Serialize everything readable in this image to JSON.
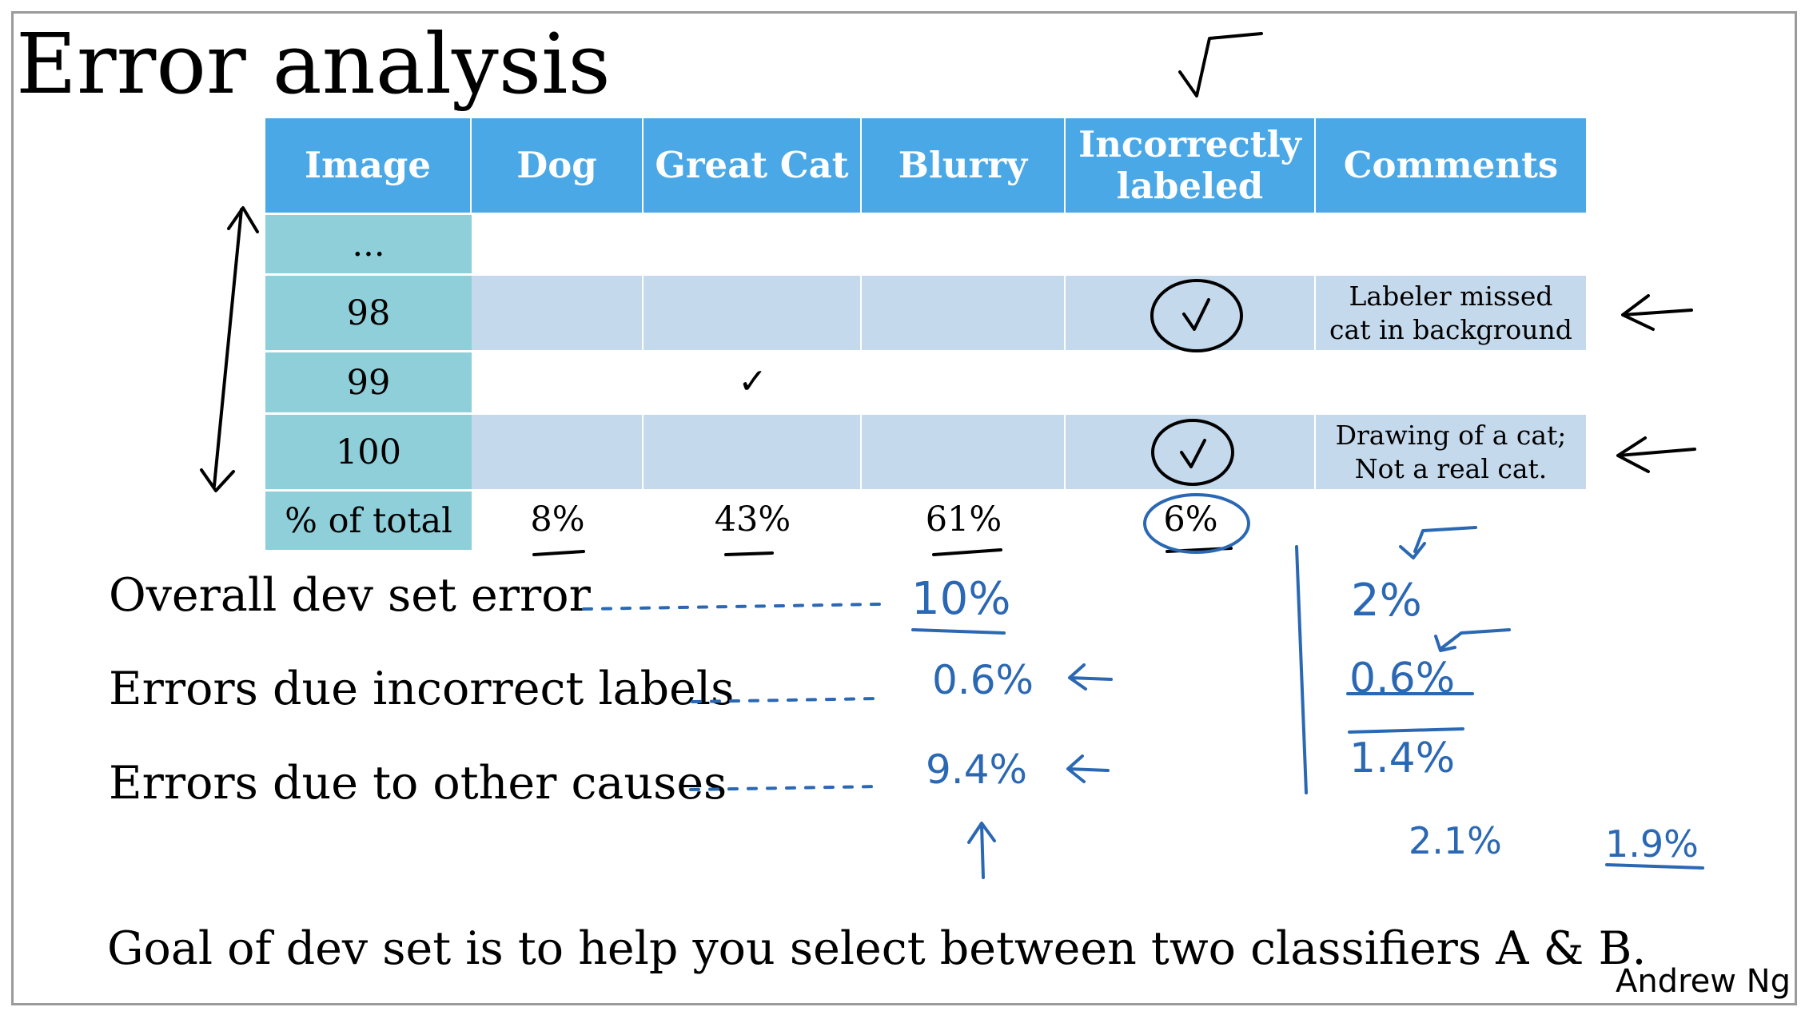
{
  "title": "Error analysis",
  "table": {
    "headers": [
      "Image",
      "Dog",
      "Great Cat",
      "Blurry",
      "Incorrectly labeled",
      "Comments"
    ],
    "rows": [
      {
        "image": "...",
        "comment": ""
      },
      {
        "image": "98",
        "comment": "Labeler missed cat in background"
      },
      {
        "image": "99",
        "comment": ""
      },
      {
        "image": "100",
        "comment": "Drawing of a cat; Not a real cat."
      }
    ],
    "totals_label": "% of total",
    "totals": [
      "8%",
      "43%",
      "61%",
      "6%"
    ],
    "check_glyph": "✓"
  },
  "lines": {
    "overall": "Overall dev set error",
    "incorrect": "Errors due incorrect labels",
    "other": "Errors due to other causes",
    "goal": "Goal of dev set is to help you select between two classifiers A & B."
  },
  "handwritten": {
    "col1": [
      "10%",
      "0.6%",
      "9.4%"
    ],
    "col2": [
      "2%",
      "0.6%",
      "1.4%"
    ],
    "extra": [
      "2.1%",
      "1.9%"
    ]
  },
  "author": "Andrew Ng",
  "colors": {
    "header_blue": "#4aa8e6",
    "first_col_teal": "#8fcfd9",
    "band_blue": "#c5d9ec",
    "ink_blue": "#2b68b3"
  }
}
